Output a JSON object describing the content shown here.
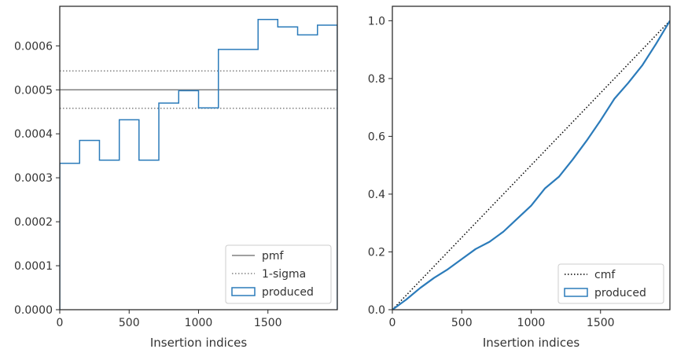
{
  "chart_data": [
    {
      "type": "line",
      "xlabel": "Insertion indices",
      "ylabel": "",
      "xlim": [
        0,
        2000
      ],
      "ylim": [
        0,
        0.00069
      ],
      "xticks": [
        0,
        500,
        1000,
        1500
      ],
      "xtick_labels": [
        "0",
        "500",
        "1000",
        "1500"
      ],
      "yticks": [
        0,
        0.0001,
        0.0002,
        0.0003,
        0.0004,
        0.0005,
        0.0006
      ],
      "ytick_labels": [
        "0.0000",
        "0.0001",
        "0.0002",
        "0.0003",
        "0.0004",
        "0.0005",
        "0.0006"
      ],
      "legend_position": "lower-right",
      "series": [
        {
          "name": "pmf",
          "kind": "hline",
          "style": "solid",
          "color": "#808080",
          "y": 0.0005
        },
        {
          "name": "1-sigma",
          "kind": "hlines",
          "style": "dotted",
          "color": "#808080",
          "y": [
            0.000458,
            0.000543
          ]
        },
        {
          "name": "produced",
          "kind": "step-histogram",
          "color": "#2b7bba",
          "bin_edges": [
            0,
            143,
            286,
            429,
            571,
            714,
            857,
            1000,
            1143,
            1286,
            1429,
            1571,
            1714,
            1857,
            2000
          ],
          "values": [
            0.000333,
            0.000385,
            0.00034,
            0.000432,
            0.00034,
            0.00047,
            0.000498,
            0.000459,
            0.000592,
            0.000592,
            0.00066,
            0.000643,
            0.000625,
            0.000647
          ]
        }
      ]
    },
    {
      "type": "line",
      "xlabel": "Insertion indices",
      "ylabel": "",
      "xlim": [
        0,
        2000
      ],
      "ylim": [
        0,
        1.05
      ],
      "xticks": [
        0,
        500,
        1000,
        1500
      ],
      "xtick_labels": [
        "0",
        "500",
        "1000",
        "1500"
      ],
      "yticks": [
        0,
        0.2,
        0.4,
        0.6,
        0.8,
        1.0
      ],
      "ytick_labels": [
        "0.0",
        "0.2",
        "0.4",
        "0.6",
        "0.8",
        "1.0"
      ],
      "legend_position": "lower-right",
      "series": [
        {
          "name": "cmf",
          "kind": "line",
          "style": "dotted",
          "color": "#000000",
          "x": [
            0,
            2000
          ],
          "y": [
            0,
            1
          ]
        },
        {
          "name": "produced",
          "kind": "cumulative",
          "color": "#2b7bba",
          "x": [
            0,
            100,
            200,
            300,
            400,
            500,
            600,
            700,
            800,
            900,
            1000,
            1100,
            1200,
            1300,
            1400,
            1500,
            1600,
            1700,
            1800,
            1900,
            2000
          ],
          "y": [
            0,
            0.035,
            0.075,
            0.11,
            0.14,
            0.175,
            0.21,
            0.235,
            0.27,
            0.315,
            0.36,
            0.42,
            0.46,
            0.52,
            0.585,
            0.655,
            0.73,
            0.785,
            0.845,
            0.92,
            1.0
          ]
        }
      ]
    }
  ]
}
